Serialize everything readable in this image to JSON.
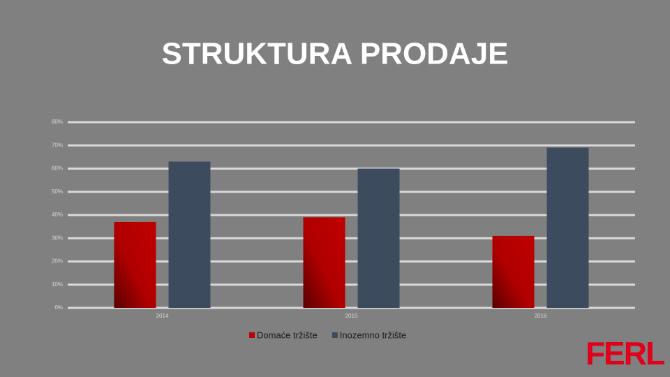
{
  "chart_data": {
    "type": "bar",
    "title": "STRUKTURA PRODAJE",
    "categories": [
      "2014",
      "2015",
      "2016"
    ],
    "series": [
      {
        "name": "Domaće tržište",
        "color": "#c00000",
        "values": [
          37,
          39,
          31
        ]
      },
      {
        "name": "Inozemno tržište",
        "color": "#3d4b5e",
        "values": [
          63,
          60,
          69
        ]
      }
    ],
    "ylim": [
      0,
      80
    ],
    "yticks": [
      {
        "value": 0,
        "label": "0%"
      },
      {
        "value": 10,
        "label": "10%"
      },
      {
        "value": 20,
        "label": "20%"
      },
      {
        "value": 30,
        "label": "30%"
      },
      {
        "value": 40,
        "label": "40%"
      },
      {
        "value": 50,
        "label": "50%"
      },
      {
        "value": 60,
        "label": "60%"
      },
      {
        "value": 70,
        "label": "70%"
      },
      {
        "value": 80,
        "label": "80%"
      }
    ],
    "grid": true,
    "legend": "bottom"
  },
  "logo": "FERL"
}
